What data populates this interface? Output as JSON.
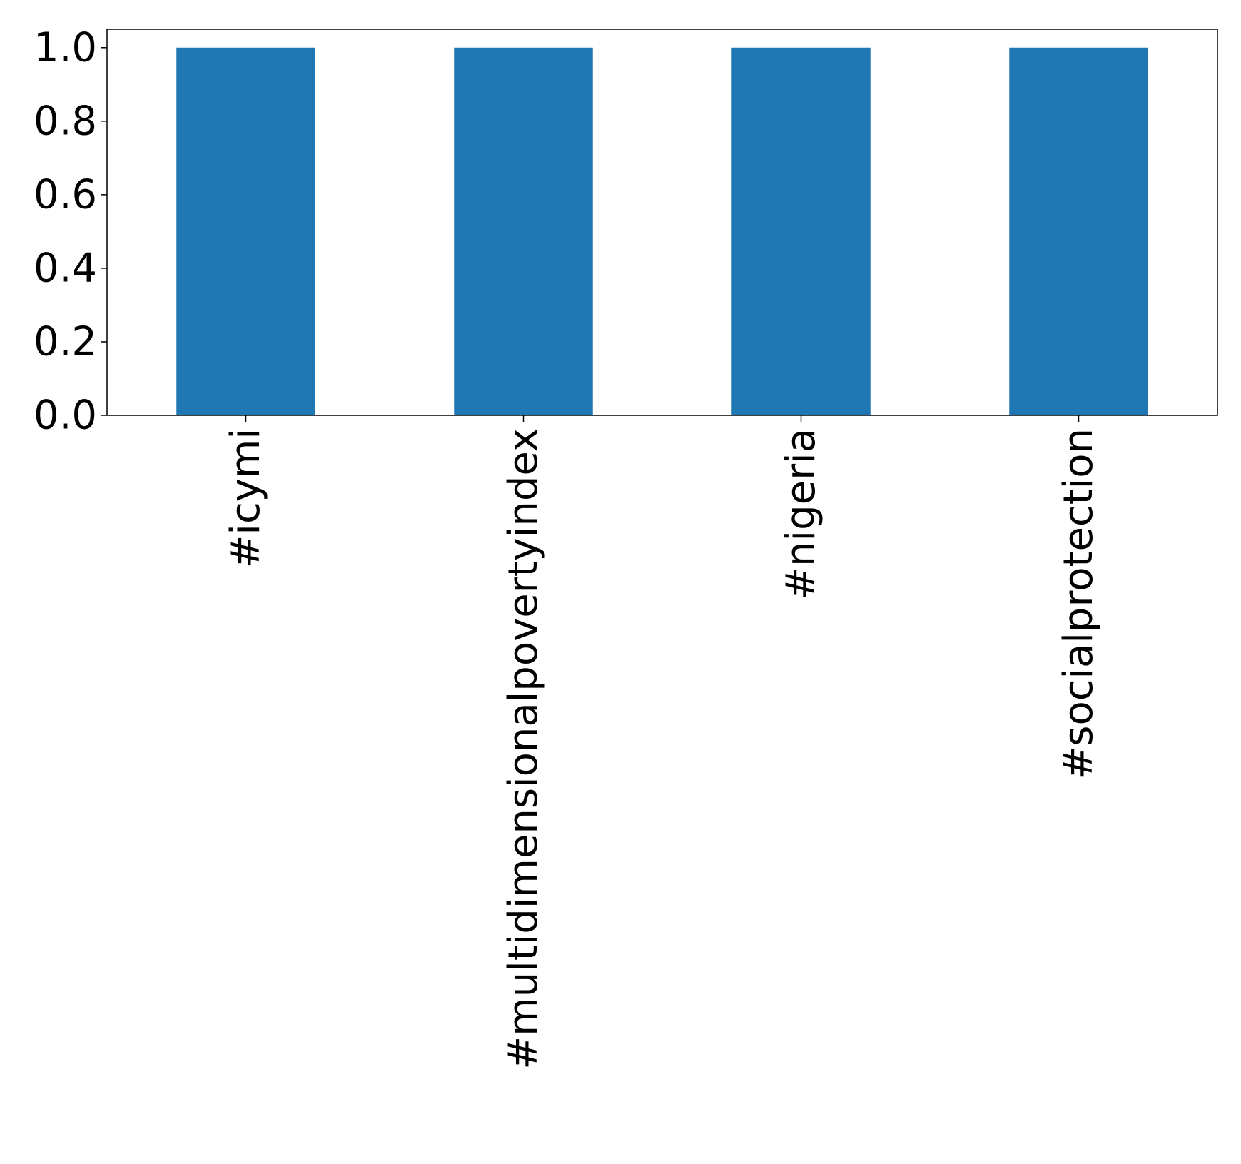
{
  "chart_data": {
    "type": "bar",
    "categories": [
      "#icymi",
      "#multidimensionalpovertyindex",
      "#nigeria",
      "#socialprotection"
    ],
    "values": [
      1,
      1,
      1,
      1
    ],
    "ylim": [
      0,
      1.05
    ],
    "yticks": [
      "0.0",
      "0.2",
      "0.4",
      "0.6",
      "0.8",
      "1.0"
    ],
    "grid": false,
    "legend": "none",
    "bar_color": "#1f77b4"
  }
}
